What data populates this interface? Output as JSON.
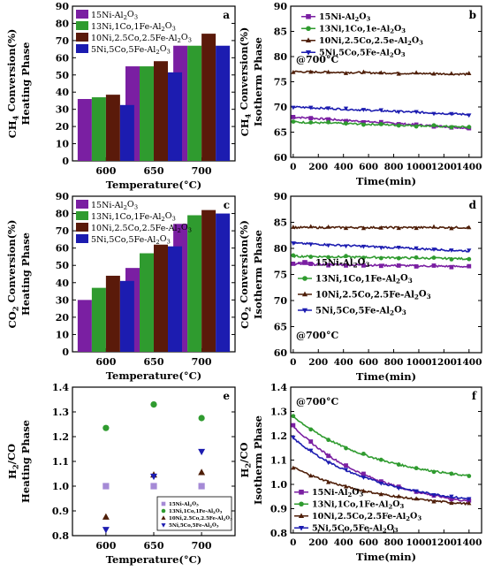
{
  "colors": {
    "purple": "#7a1fa2",
    "green": "#2f9b2f",
    "darkred": "#5a1a0a",
    "blue": "#1c1cb0",
    "brown": "#4e1e08",
    "lavender": "#a58ad6"
  },
  "chart_data": [
    {
      "panel": "a",
      "type": "bar",
      "ylabel": "CH4 Conversion(%)",
      "ylabel2": "Heating Phase",
      "xlabel": "Temperature(°C)",
      "ylim": [
        0,
        90
      ],
      "yticks": [
        0,
        10,
        20,
        30,
        40,
        50,
        60,
        70,
        80,
        90
      ],
      "categories": [
        "600",
        "650",
        "700"
      ],
      "legend_position": "top-left",
      "series": [
        {
          "name": "15Ni-Al2O3",
          "color": "#7a1fa2",
          "values": [
            36,
            55,
            67
          ]
        },
        {
          "name": "13Ni,1Co,1Fe-Al2O3",
          "color": "#2f9b2f",
          "values": [
            37,
            55,
            67
          ]
        },
        {
          "name": "10Ni,2.5Co,2.5Fe-Al2O3",
          "color": "#5a1a0a",
          "values": [
            38.5,
            58,
            74
          ]
        },
        {
          "name": "5Ni,5Co,5Fe-Al2O3",
          "color": "#1c1cb0",
          "values": [
            32.5,
            51.5,
            67
          ]
        }
      ]
    },
    {
      "panel": "b",
      "type": "line",
      "ylabel": "CH4 Conversion(%)",
      "ylabel2": "Isotherm Phase",
      "xlabel": "Time(min)",
      "xlim": [
        -20,
        1500
      ],
      "xticks": [
        0,
        200,
        400,
        600,
        800,
        1000,
        1200,
        1400
      ],
      "ylim": [
        60,
        90
      ],
      "yticks": [
        60,
        65,
        70,
        75,
        80,
        85,
        90
      ],
      "annotation": "@700°C",
      "legend_position": "top",
      "series": [
        {
          "name": "15Ni-Al2O3",
          "color": "#7a1fa2",
          "marker": "square",
          "start": 68,
          "end": 65.8
        },
        {
          "name": "13Ni,1Co,1e-Al2O3",
          "color": "#2f9b2f",
          "marker": "circle",
          "start": 67,
          "end": 66
        },
        {
          "name": "10Ni,2.5Co,2.5e-Al2O3",
          "color": "#4e1e08",
          "marker": "triangle-up",
          "start": 77,
          "end": 76.5
        },
        {
          "name": "5Ni,5Co,5Fe-Al2O3",
          "color": "#1c1cb0",
          "marker": "triangle-down",
          "start": 70,
          "end": 68.5
        }
      ]
    },
    {
      "panel": "c",
      "type": "bar",
      "ylabel": "CO2 Conversion(%)",
      "ylabel2": "Heating Phase",
      "xlabel": "Temperature(°C)",
      "ylim": [
        0,
        90
      ],
      "yticks": [
        0,
        10,
        20,
        30,
        40,
        50,
        60,
        70,
        80,
        90
      ],
      "categories": [
        "600",
        "650",
        "700"
      ],
      "legend_position": "top-left",
      "series": [
        {
          "name": "15Ni-Al2O3",
          "color": "#7a1fa2",
          "values": [
            30,
            48.5,
            74
          ]
        },
        {
          "name": "13Ni,1Co,1Fe-Al2O3",
          "color": "#2f9b2f",
          "values": [
            37,
            57,
            79
          ]
        },
        {
          "name": "10Ni,2.5Co,2.5Fe-Al2O3",
          "color": "#5a1a0a",
          "values": [
            44,
            62,
            82
          ]
        },
        {
          "name": "5Ni,5Co,5Fe-Al2O3",
          "color": "#1c1cb0",
          "values": [
            41,
            61,
            80
          ]
        }
      ]
    },
    {
      "panel": "d",
      "type": "line",
      "ylabel": "CO2 Conversion(%)",
      "ylabel2": "Isotherm Phase",
      "xlabel": "Time(min)",
      "xlim": [
        -20,
        1500
      ],
      "xticks": [
        0,
        200,
        400,
        600,
        800,
        1000,
        1200,
        1400
      ],
      "ylim": [
        60,
        90
      ],
      "yticks": [
        60,
        65,
        70,
        75,
        80,
        85,
        90
      ],
      "annotation": "@700°C",
      "legend_position": "bottom-left",
      "series": [
        {
          "name": "15Ni-Al2O3",
          "color": "#7a1fa2",
          "marker": "square",
          "start": 77,
          "end": 76.5
        },
        {
          "name": "13Ni,1Co,1Fe-Al2O3",
          "color": "#2f9b2f",
          "marker": "circle",
          "start": 78.5,
          "end": 78
        },
        {
          "name": "10Ni,2.5Co,2.5Fe-Al2O3",
          "color": "#4e1e08",
          "marker": "triangle-up",
          "start": 84,
          "end": 84
        },
        {
          "name": "5Ni,5Co,5Fe-Al2O3",
          "color": "#1c1cb0",
          "marker": "triangle-down",
          "start": 81,
          "end": 79.5
        }
      ]
    },
    {
      "panel": "e",
      "type": "scatter",
      "ylabel": "H2/CO",
      "ylabel2": "Heating Phase",
      "xlabel": "Temperature(°C)",
      "ylim": [
        0.8,
        1.4
      ],
      "yticks": [
        0.8,
        0.9,
        1.0,
        1.1,
        1.2,
        1.3,
        1.4
      ],
      "categories": [
        "600",
        "650",
        "700"
      ],
      "legend_position": "bottom-right",
      "series": [
        {
          "name": "15Ni-Al2O3",
          "color": "#a58ad6",
          "marker": "square",
          "values": [
            1.0,
            1.0,
            1.0
          ]
        },
        {
          "name": "13Ni,1Co,1Fe-Al2O3",
          "color": "#2f9b2f",
          "marker": "circle",
          "values": [
            1.235,
            1.33,
            1.275
          ]
        },
        {
          "name": "10Ni,2.5Co,2.5Fe-Al2O3",
          "color": "#4e1e08",
          "marker": "triangle-up",
          "values": [
            0.875,
            1.045,
            1.055
          ]
        },
        {
          "name": "5Ni,5Co,5Fe-Al2O3",
          "color": "#1c1cb0",
          "marker": "triangle-down",
          "values": [
            0.825,
            1.04,
            1.14
          ]
        }
      ]
    },
    {
      "panel": "f",
      "type": "line",
      "ylabel": "H2/CO",
      "ylabel2": "Isotherm Phase",
      "xlabel": "Time(min)",
      "xlim": [
        -20,
        1500
      ],
      "xticks": [
        0,
        200,
        400,
        600,
        800,
        1000,
        1200,
        1400
      ],
      "ylim": [
        0.8,
        1.4
      ],
      "yticks": [
        0.8,
        0.9,
        1.0,
        1.1,
        1.2,
        1.3,
        1.4
      ],
      "annotation": "@700°C",
      "legend_position": "bottom-left",
      "series": [
        {
          "name": "15Ni-Al2O3",
          "color": "#7a1fa2",
          "marker": "square",
          "start": 1.24,
          "end": 0.93
        },
        {
          "name": "13Ni,1Co,1Fe-Al2O3",
          "color": "#2f9b2f",
          "marker": "circle",
          "start": 1.28,
          "end": 1.035
        },
        {
          "name": "10Ni,2.5Co,2.5Fe-Al2O3",
          "color": "#4e1e08",
          "marker": "triangle-up",
          "start": 1.07,
          "end": 0.92
        },
        {
          "name": "5Ni,5Co,5Fe-Al2O3",
          "color": "#1c1cb0",
          "marker": "triangle-down",
          "start": 1.19,
          "end": 0.94
        }
      ]
    }
  ]
}
